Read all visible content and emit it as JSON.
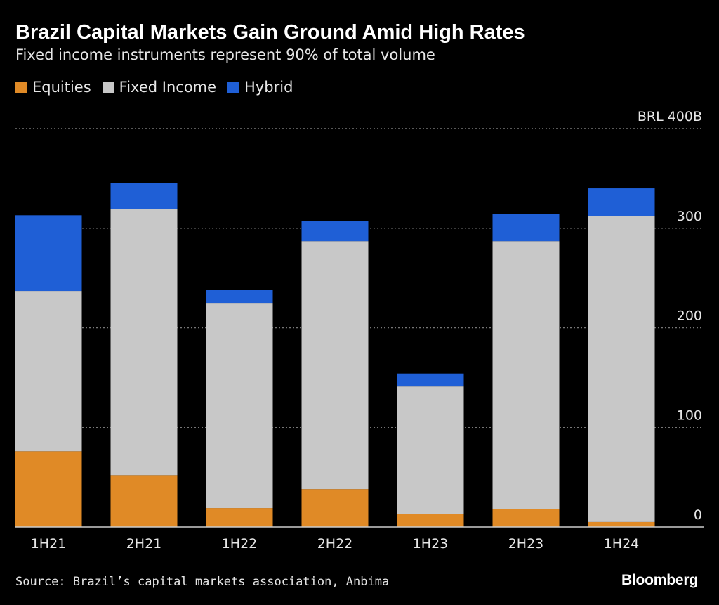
{
  "title": "Brazil Capital Markets Gain Ground Amid High Rates",
  "subtitle": "Fixed income instruments represent 90% of total volume",
  "source": "Source: Brazil’s capital markets association, Anbima",
  "brand": "Bloomberg",
  "legend": [
    {
      "name": "Equities",
      "color": "#e08a26"
    },
    {
      "name": "Fixed Income",
      "color": "#c8c8c8"
    },
    {
      "name": "Hybrid",
      "color": "#1f5fd6"
    }
  ],
  "chart_data": {
    "type": "bar",
    "stacked": true,
    "categories": [
      "1H21",
      "2H21",
      "1H22",
      "2H22",
      "1H23",
      "2H23",
      "1H24"
    ],
    "series": [
      {
        "name": "Equities",
        "color": "#e08a26",
        "values": [
          76,
          52,
          19,
          38,
          13,
          18,
          5
        ]
      },
      {
        "name": "Fixed Income",
        "color": "#c8c8c8",
        "values": [
          161,
          267,
          206,
          249,
          128,
          269,
          307
        ]
      },
      {
        "name": "Hybrid",
        "color": "#1f5fd6",
        "values": [
          76,
          26,
          13,
          20,
          13,
          27,
          28
        ]
      }
    ],
    "ylim": [
      0,
      400
    ],
    "yticks": [
      {
        "value": 0,
        "label": "0"
      },
      {
        "value": 100,
        "label": "100"
      },
      {
        "value": 200,
        "label": "200"
      },
      {
        "value": 300,
        "label": "300"
      },
      {
        "value": 400,
        "label": "BRL 400B"
      }
    ],
    "grid": true,
    "legend_position": "top-left"
  }
}
